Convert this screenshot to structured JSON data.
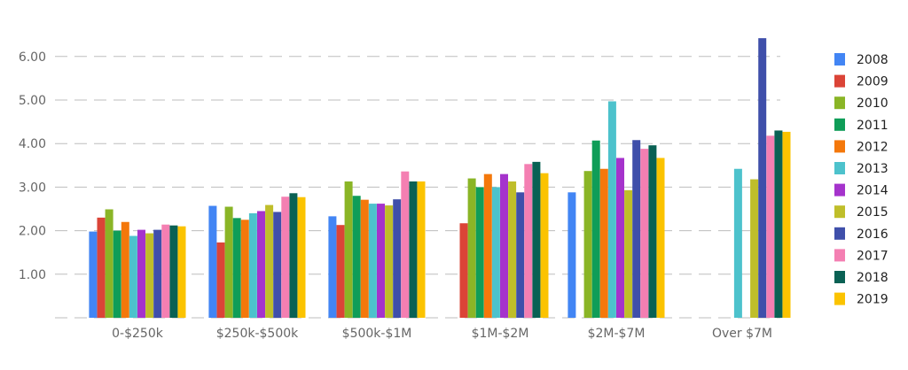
{
  "chart_data": {
    "type": "bar",
    "title": "",
    "xlabel": "",
    "ylabel": "",
    "grid": true,
    "legend_position": "right",
    "ylim": [
      0,
      6.5
    ],
    "yticks": [
      1.0,
      2.0,
      3.0,
      4.0,
      5.0,
      6.0
    ],
    "ytick_labels": [
      "1.00",
      "2.00",
      "3.00",
      "4.00",
      "5.00",
      "6.00"
    ],
    "categories": [
      "0-$250k",
      "$250k-$500k",
      "$500k-$1M",
      "$1M-$2M",
      "$2M-$7M",
      "Over $7M"
    ],
    "series": [
      {
        "name": "2008",
        "color": "#4285F4",
        "values": [
          1.98,
          2.57,
          2.33,
          null,
          2.88,
          null
        ]
      },
      {
        "name": "2009",
        "color": "#DB4437",
        "values": [
          2.3,
          1.73,
          2.13,
          2.17,
          null,
          null
        ]
      },
      {
        "name": "2010",
        "color": "#8AB526",
        "values": [
          2.49,
          2.55,
          3.13,
          3.2,
          3.37,
          null
        ]
      },
      {
        "name": "2011",
        "color": "#0F9D58",
        "values": [
          2.0,
          2.29,
          2.8,
          3.0,
          4.07,
          null
        ]
      },
      {
        "name": "2012",
        "color": "#F4780B",
        "values": [
          2.2,
          2.25,
          2.71,
          3.3,
          3.42,
          null
        ]
      },
      {
        "name": "2013",
        "color": "#4DC2CC",
        "values": [
          1.88,
          2.4,
          2.62,
          3.0,
          4.97,
          3.42
        ]
      },
      {
        "name": "2014",
        "color": "#A533CC",
        "values": [
          2.02,
          2.45,
          2.62,
          3.3,
          3.67,
          null
        ]
      },
      {
        "name": "2015",
        "color": "#BFBE2A",
        "values": [
          1.94,
          2.59,
          2.58,
          3.13,
          2.93,
          3.18
        ]
      },
      {
        "name": "2016",
        "color": "#3F4FAA",
        "values": [
          2.02,
          2.43,
          2.72,
          2.88,
          4.08,
          6.42
        ]
      },
      {
        "name": "2017",
        "color": "#F47FB2",
        "values": [
          2.14,
          2.78,
          3.36,
          3.53,
          3.88,
          4.18
        ]
      },
      {
        "name": "2018",
        "color": "#0A6154",
        "values": [
          2.12,
          2.86,
          3.13,
          3.58,
          3.96,
          4.3
        ]
      },
      {
        "name": "2019",
        "color": "#FBC300",
        "values": [
          2.1,
          2.77,
          3.13,
          3.32,
          3.67,
          4.27
        ]
      }
    ]
  }
}
